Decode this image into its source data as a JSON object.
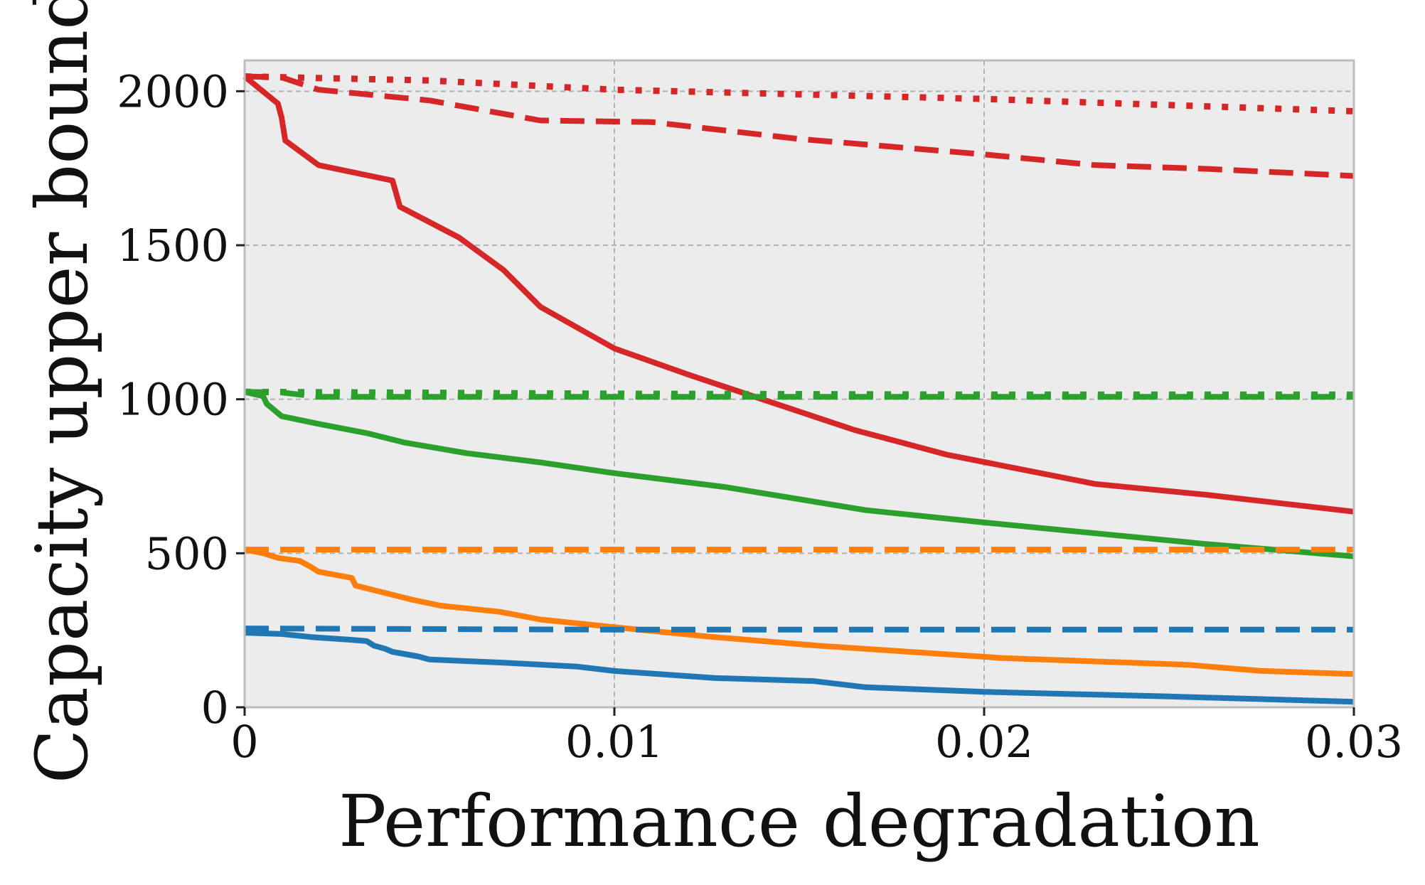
{
  "chart_data": {
    "type": "line",
    "title": "",
    "xlabel": "Performance degradation",
    "ylabel": "Capacity upper bound",
    "xlim": [
      0,
      0.03
    ],
    "ylim": [
      0,
      2100
    ],
    "xticks": [
      0,
      0.01,
      0.02,
      0.03
    ],
    "xtick_labels": [
      "0",
      "0.01",
      "0.02",
      "0.03"
    ],
    "yticks": [
      0,
      500,
      1000,
      1500,
      2000
    ],
    "ytick_labels": [
      "0",
      "500",
      "1000",
      "1500",
      "2000"
    ],
    "grid": true,
    "legend": "none",
    "colors": {
      "background": "#ececec",
      "grid": "#b0b0b0",
      "frame": "#bdbdbd",
      "blue": "#1f77b4",
      "orange": "#ff7f0e",
      "green": "#2ca02c",
      "red": "#d62728"
    },
    "series": [
      {
        "name": "red dotted",
        "color": "#d62728",
        "style": "dotted",
        "x": [
          0,
          0.005,
          0.01,
          0.015,
          0.02,
          0.025,
          0.03
        ],
        "y": [
          2048,
          2035,
          2005,
          1990,
          1975,
          1955,
          1935
        ]
      },
      {
        "name": "red dashed",
        "color": "#d62728",
        "style": "dashed",
        "x": [
          0,
          0.001,
          0.002,
          0.005,
          0.008,
          0.011,
          0.015,
          0.02,
          0.023,
          0.026,
          0.03
        ],
        "y": [
          2048,
          2045,
          2005,
          1970,
          1905,
          1900,
          1845,
          1795,
          1760,
          1748,
          1725
        ]
      },
      {
        "name": "red solid",
        "color": "#d62728",
        "style": "solid",
        "x": [
          0,
          0.0009,
          0.001,
          0.0011,
          0.002,
          0.004,
          0.0042,
          0.0058,
          0.007,
          0.008,
          0.01,
          0.012,
          0.014,
          0.0165,
          0.019,
          0.023,
          0.026,
          0.03
        ],
        "y": [
          2048,
          1960,
          1915,
          1840,
          1760,
          1710,
          1625,
          1525,
          1420,
          1300,
          1165,
          1080,
          1000,
          900,
          820,
          725,
          690,
          635
        ]
      },
      {
        "name": "green dotted",
        "color": "#2ca02c",
        "style": "dotted",
        "x": [
          0,
          0.01,
          0.02,
          0.03
        ],
        "y": [
          1024,
          1018,
          1015,
          1015
        ]
      },
      {
        "name": "green dashed",
        "color": "#2ca02c",
        "style": "dashed",
        "x": [
          0,
          0.001,
          0.002,
          0.01,
          0.02,
          0.03
        ],
        "y": [
          1024,
          1022,
          1008,
          1008,
          1008,
          1008
        ]
      },
      {
        "name": "green solid",
        "color": "#2ca02c",
        "style": "solid",
        "x": [
          0,
          0.0005,
          0.0006,
          0.0007,
          0.0008,
          0.001,
          0.002,
          0.0033,
          0.0043,
          0.006,
          0.008,
          0.01,
          0.013,
          0.0168,
          0.02,
          0.023,
          0.026,
          0.03
        ],
        "y": [
          1024,
          1010,
          985,
          975,
          965,
          945,
          920,
          890,
          860,
          825,
          795,
          760,
          715,
          640,
          600,
          565,
          530,
          490
        ]
      },
      {
        "name": "orange dashed",
        "color": "#ff7f0e",
        "style": "dashed",
        "x": [
          0,
          0.01,
          0.02,
          0.03
        ],
        "y": [
          512,
          512,
          512,
          512
        ]
      },
      {
        "name": "orange solid",
        "color": "#ff7f0e",
        "style": "solid",
        "x": [
          0,
          0.0005,
          0.0009,
          0.0015,
          0.0018,
          0.002,
          0.0029,
          0.003,
          0.0045,
          0.0053,
          0.0069,
          0.008,
          0.01,
          0.0125,
          0.0155,
          0.0205,
          0.0255,
          0.0275,
          0.03
        ],
        "y": [
          512,
          500,
          485,
          475,
          455,
          440,
          420,
          395,
          350,
          330,
          310,
          285,
          260,
          230,
          200,
          160,
          138,
          118,
          108
        ]
      },
      {
        "name": "blue dashed",
        "color": "#1f77b4",
        "style": "dashed",
        "x": [
          0,
          0.01,
          0.02,
          0.03
        ],
        "y": [
          256,
          252,
          252,
          252
        ]
      },
      {
        "name": "blue solid",
        "color": "#1f77b4",
        "style": "solid",
        "x": [
          0,
          0.0005,
          0.001,
          0.0018,
          0.0028,
          0.0033,
          0.0035,
          0.0038,
          0.004,
          0.0047,
          0.005,
          0.007,
          0.009,
          0.01,
          0.0127,
          0.0154,
          0.0168,
          0.02,
          0.025,
          0.03
        ],
        "y": [
          242,
          240,
          238,
          228,
          220,
          215,
          200,
          190,
          180,
          165,
          155,
          145,
          132,
          118,
          95,
          85,
          65,
          50,
          35,
          18
        ]
      }
    ]
  }
}
